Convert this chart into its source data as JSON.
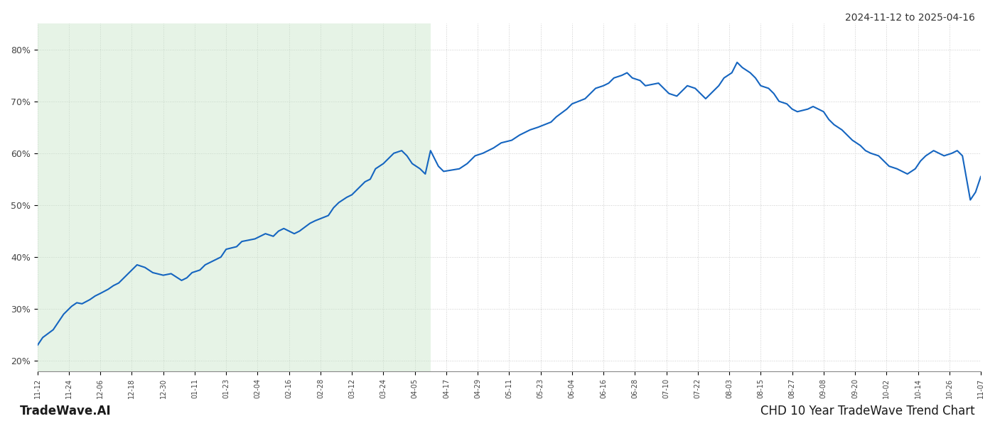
{
  "title_top_right": "2024-11-12 to 2025-04-16",
  "title_bottom_right": "CHD 10 Year TradeWave Trend Chart",
  "title_bottom_left": "TradeWave.AI",
  "shaded_region_start": "2024-11-12",
  "shaded_region_end": "2025-04-11",
  "shaded_color": "#c8e6c9",
  "shaded_alpha": 0.45,
  "line_color": "#1565c0",
  "line_width": 1.5,
  "background_color": "#ffffff",
  "grid_color": "#cccccc",
  "grid_style": ":",
  "ylim": [
    18,
    85
  ],
  "yticks": [
    20,
    30,
    40,
    50,
    60,
    70,
    80
  ],
  "dates": [
    "2024-11-12",
    "2024-11-14",
    "2024-11-18",
    "2024-11-20",
    "2024-11-22",
    "2024-11-25",
    "2024-11-27",
    "2024-11-29",
    "2024-12-02",
    "2024-12-04",
    "2024-12-06",
    "2024-12-09",
    "2024-12-11",
    "2024-12-13",
    "2024-12-16",
    "2024-12-18",
    "2024-12-20",
    "2024-12-23",
    "2024-12-26",
    "2024-12-30",
    "2025-01-02",
    "2025-01-06",
    "2025-01-08",
    "2025-01-10",
    "2025-01-13",
    "2025-01-15",
    "2025-01-17",
    "2025-01-21",
    "2025-01-23",
    "2025-01-27",
    "2025-01-29",
    "2025-02-03",
    "2025-02-05",
    "2025-02-07",
    "2025-02-10",
    "2025-02-12",
    "2025-02-14",
    "2025-02-18",
    "2025-02-20",
    "2025-02-24",
    "2025-02-26",
    "2025-03-03",
    "2025-03-05",
    "2025-03-07",
    "2025-03-10",
    "2025-03-12",
    "2025-03-14",
    "2025-03-17",
    "2025-03-19",
    "2025-03-21",
    "2025-03-24",
    "2025-03-26",
    "2025-03-28",
    "2025-03-31",
    "2025-04-02",
    "2025-04-04",
    "2025-04-07",
    "2025-04-09",
    "2025-04-11",
    "2025-04-14",
    "2025-04-16",
    "2025-04-22",
    "2025-04-25",
    "2025-04-28",
    "2025-05-01",
    "2025-05-05",
    "2025-05-08",
    "2025-05-12",
    "2025-05-15",
    "2025-05-19",
    "2025-05-22",
    "2025-05-27",
    "2025-05-29",
    "2025-06-02",
    "2025-06-04",
    "2025-06-09",
    "2025-06-11",
    "2025-06-13",
    "2025-06-16",
    "2025-06-18",
    "2025-06-20",
    "2025-06-23",
    "2025-06-25",
    "2025-06-27",
    "2025-06-30",
    "2025-07-02",
    "2025-07-07",
    "2025-07-09",
    "2025-07-11",
    "2025-07-14",
    "2025-07-16",
    "2025-07-18",
    "2025-07-21",
    "2025-07-23",
    "2025-07-25",
    "2025-07-28",
    "2025-07-30",
    "2025-08-01",
    "2025-08-04",
    "2025-08-06",
    "2025-08-08",
    "2025-08-11",
    "2025-08-13",
    "2025-08-15",
    "2025-08-18",
    "2025-08-20",
    "2025-08-22",
    "2025-08-25",
    "2025-08-27",
    "2025-08-29",
    "2025-09-02",
    "2025-09-04",
    "2025-09-08",
    "2025-09-10",
    "2025-09-12",
    "2025-09-15",
    "2025-09-17",
    "2025-09-19",
    "2025-09-22",
    "2025-09-24",
    "2025-09-26",
    "2025-09-29",
    "2025-10-01",
    "2025-10-03",
    "2025-10-06",
    "2025-10-08",
    "2025-10-10",
    "2025-10-13",
    "2025-10-15",
    "2025-10-17",
    "2025-10-20",
    "2025-10-22",
    "2025-10-24",
    "2025-10-27",
    "2025-10-29",
    "2025-10-31",
    "2025-11-03",
    "2025-11-05",
    "2025-11-07"
  ],
  "values": [
    23.0,
    24.5,
    26.0,
    27.5,
    29.0,
    30.5,
    31.2,
    31.0,
    31.8,
    32.5,
    33.0,
    33.8,
    34.5,
    35.0,
    36.5,
    37.5,
    38.5,
    38.0,
    37.0,
    36.5,
    36.8,
    35.5,
    36.0,
    37.0,
    37.5,
    38.5,
    39.0,
    40.0,
    41.5,
    42.0,
    43.0,
    43.5,
    44.0,
    44.5,
    44.0,
    45.0,
    45.5,
    44.5,
    45.0,
    46.5,
    47.0,
    48.0,
    49.5,
    50.5,
    51.5,
    52.0,
    53.0,
    54.5,
    55.0,
    57.0,
    58.0,
    59.0,
    60.0,
    60.5,
    59.5,
    58.0,
    57.0,
    56.0,
    60.5,
    57.5,
    56.5,
    57.0,
    58.0,
    59.5,
    60.0,
    61.0,
    62.0,
    62.5,
    63.5,
    64.5,
    65.0,
    66.0,
    67.0,
    68.5,
    69.5,
    70.5,
    71.5,
    72.5,
    73.0,
    73.5,
    74.5,
    75.0,
    75.5,
    74.5,
    74.0,
    73.0,
    73.5,
    72.5,
    71.5,
    71.0,
    72.0,
    73.0,
    72.5,
    71.5,
    70.5,
    72.0,
    73.0,
    74.5,
    75.5,
    77.5,
    76.5,
    75.5,
    74.5,
    73.0,
    72.5,
    71.5,
    70.0,
    69.5,
    68.5,
    68.0,
    68.5,
    69.0,
    68.0,
    66.5,
    65.5,
    64.5,
    63.5,
    62.5,
    61.5,
    60.5,
    60.0,
    59.5,
    58.5,
    57.5,
    57.0,
    56.5,
    56.0,
    57.0,
    58.5,
    59.5,
    60.5,
    60.0,
    59.5,
    60.0,
    60.5,
    59.5,
    51.0,
    52.5,
    55.5
  ],
  "xtick_labels": [
    "11-12",
    "11-24",
    "12-06",
    "12-18",
    "12-30",
    "01-11",
    "01-23",
    "02-04",
    "02-16",
    "02-28",
    "03-12",
    "03-24",
    "04-05",
    "04-17",
    "04-29",
    "05-11",
    "05-23",
    "06-04",
    "06-16",
    "06-28",
    "07-10",
    "07-22",
    "08-03",
    "08-15",
    "08-27",
    "09-08",
    "09-20",
    "10-02",
    "10-14",
    "10-26",
    "11-07"
  ]
}
